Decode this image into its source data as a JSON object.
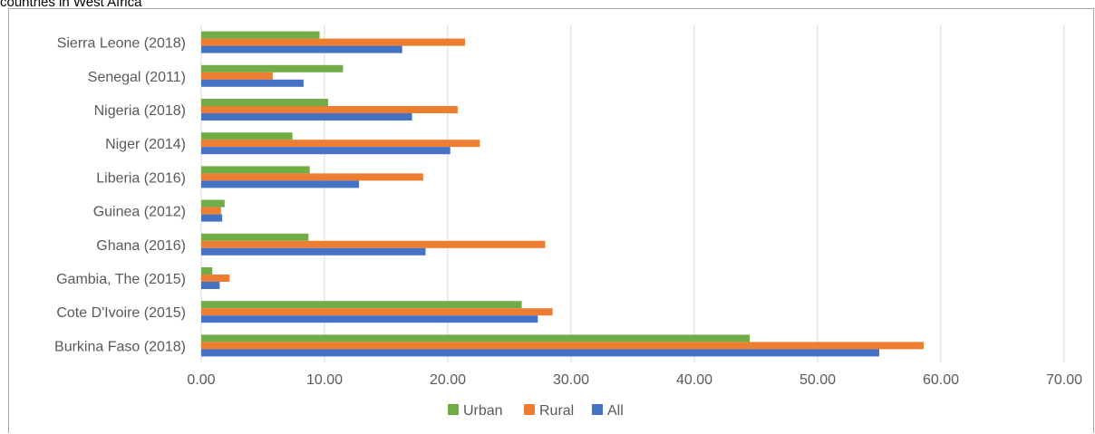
{
  "header": {
    "title_fragment": "countries in West Africa"
  },
  "colors": {
    "urban": "#70ad47",
    "rural": "#ed7d31",
    "all": "#4472c4",
    "grid": "#d9d9d9",
    "text": "#595959"
  },
  "chart_data": {
    "type": "bar",
    "orientation": "horizontal",
    "categories": [
      "Burkina Faso (2018)",
      "Cote D'Ivoire (2015)",
      "Gambia, The (2015)",
      "Ghana (2016)",
      "Guinea (2012)",
      "Liberia (2016)",
      "Niger (2014)",
      "Nigeria (2018)",
      "Senegal (2011)",
      "Sierra Leone (2018)"
    ],
    "series": [
      {
        "name": "Urban",
        "values": [
          44.5,
          26.0,
          0.9,
          8.7,
          1.9,
          8.8,
          7.4,
          10.3,
          11.5,
          9.6
        ]
      },
      {
        "name": "Rural",
        "values": [
          58.6,
          28.5,
          2.3,
          27.9,
          1.6,
          18.0,
          22.6,
          20.8,
          5.8,
          21.4
        ]
      },
      {
        "name": "All",
        "values": [
          55.0,
          27.3,
          1.5,
          18.2,
          1.7,
          12.8,
          20.2,
          17.1,
          8.3,
          16.3
        ]
      }
    ],
    "xlim": [
      0,
      70
    ],
    "xticks": [
      "0.00",
      "10.00",
      "20.00",
      "30.00",
      "40.00",
      "50.00",
      "60.00",
      "70.00"
    ],
    "grid": true,
    "legend_position": "bottom"
  }
}
